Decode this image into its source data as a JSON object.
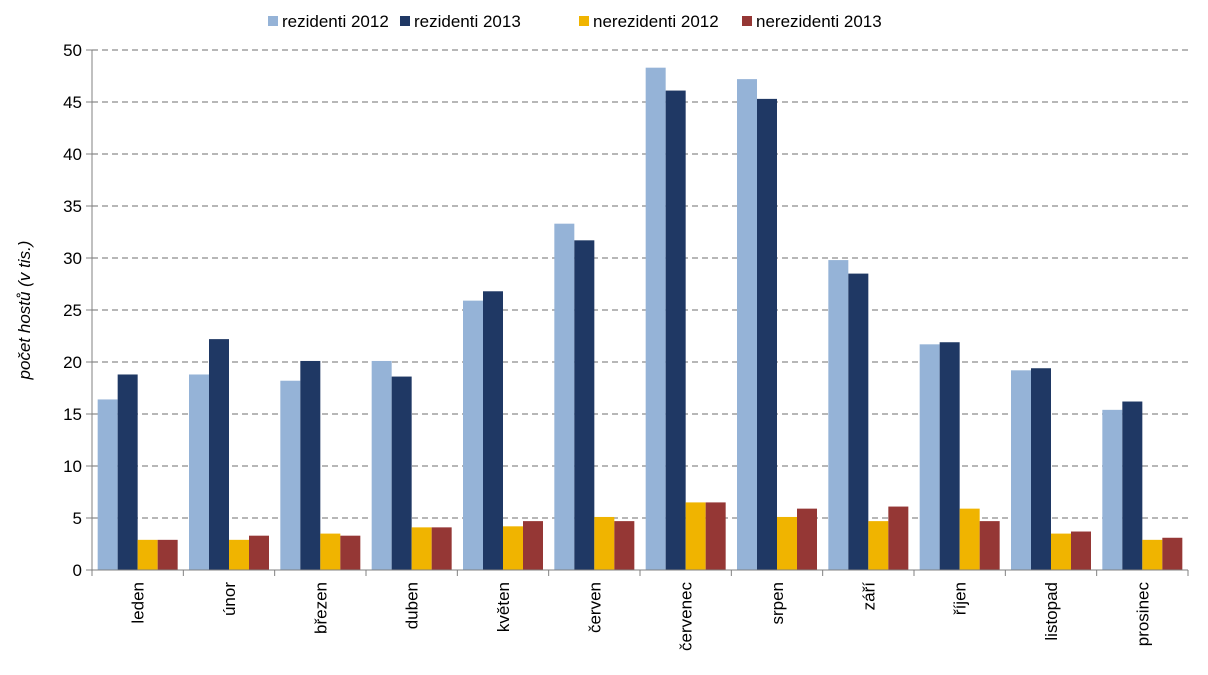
{
  "chart_data": {
    "type": "bar",
    "title": "",
    "xlabel": "",
    "ylabel": "počet hostů (v tis.)",
    "ylim": [
      0,
      50
    ],
    "yticks": [
      0,
      5,
      10,
      15,
      20,
      25,
      30,
      35,
      40,
      45,
      50
    ],
    "grid": true,
    "legend_position": "top",
    "categories": [
      "leden",
      "únor",
      "březen",
      "duben",
      "květen",
      "červen",
      "červenec",
      "srpen",
      "září",
      "říjen",
      "listopad",
      "prosinec"
    ],
    "series": [
      {
        "name": "rezidenti 2012",
        "color": "#95b3d7",
        "values": [
          16.4,
          18.8,
          18.2,
          20.1,
          25.9,
          33.3,
          48.3,
          47.2,
          29.8,
          21.7,
          19.2,
          15.4
        ]
      },
      {
        "name": "rezidenti 2013",
        "color": "#1f3864",
        "values": [
          18.8,
          22.2,
          20.1,
          18.6,
          26.8,
          31.7,
          46.1,
          45.3,
          28.5,
          21.9,
          19.4,
          16.2
        ]
      },
      {
        "name": "nerezidenti 2012",
        "color": "#f0b400",
        "values": [
          2.9,
          2.9,
          3.5,
          4.1,
          4.2,
          5.1,
          6.5,
          5.1,
          4.7,
          5.9,
          3.5,
          2.9
        ]
      },
      {
        "name": "nerezidenti 2013",
        "color": "#953735",
        "values": [
          2.9,
          3.3,
          3.3,
          4.1,
          4.7,
          4.7,
          6.5,
          5.9,
          6.1,
          4.7,
          3.7,
          3.1
        ]
      }
    ]
  }
}
